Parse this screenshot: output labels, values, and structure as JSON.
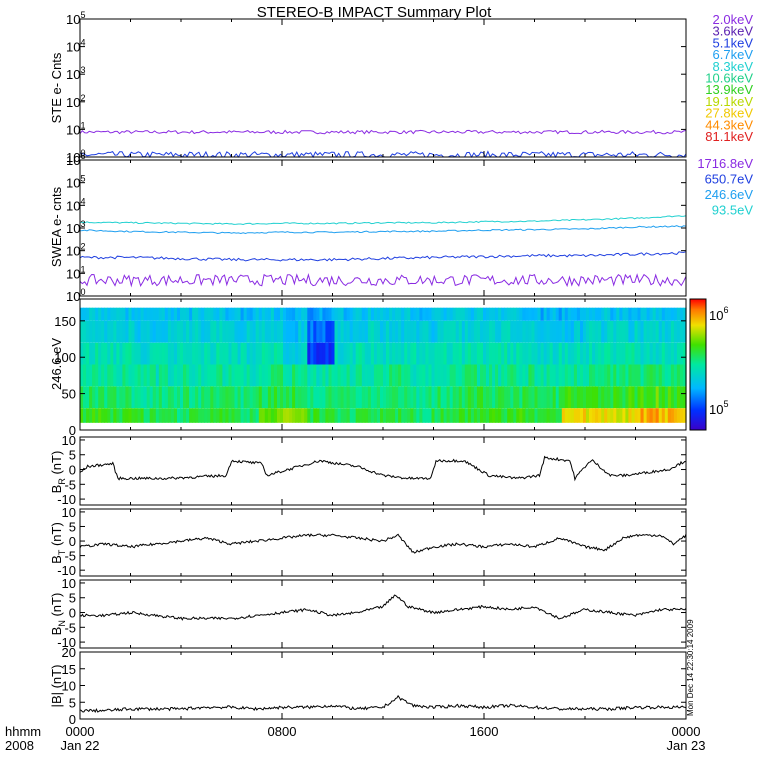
{
  "title": "STEREO-B IMPACT Summary Plot",
  "time_axis": {
    "corner_top": "hhmm",
    "corner_bottom": "2008",
    "ticks": [
      {
        "hour": 0,
        "top": "0000",
        "bottom": "Jan 22"
      },
      {
        "hour": 8,
        "top": "0800",
        "bottom": ""
      },
      {
        "hour": 16,
        "top": "1600",
        "bottom": ""
      },
      {
        "hour": 24,
        "top": "0000",
        "bottom": "Jan 23"
      }
    ],
    "range_hours": [
      0,
      24
    ]
  },
  "timestamp": "Mon Dec 14 22:30:14 2009",
  "colors": {
    "line": "#000000",
    "purple": "#7a1fd2",
    "blue": "#1a2fd6",
    "sky": "#2098f0",
    "teal": "#28d8d0"
  },
  "legend": {
    "ste": [
      {
        "label": "2.0keV",
        "color": "#8a2be2"
      },
      {
        "label": "3.6keV",
        "color": "#5a1fb0"
      },
      {
        "label": "5.1keV",
        "color": "#1f3fe0"
      },
      {
        "label": "6.7keV",
        "color": "#1f9ff0"
      },
      {
        "label": "8.3keV",
        "color": "#20d0d0"
      },
      {
        "label": "10.6keV",
        "color": "#20d08a"
      },
      {
        "label": "13.9keV",
        "color": "#30d020"
      },
      {
        "label": "19.1keV",
        "color": "#b8d800"
      },
      {
        "label": "27.8keV",
        "color": "#f0c800"
      },
      {
        "label": "44.3keV",
        "color": "#ff8c00"
      },
      {
        "label": "81.1keV",
        "color": "#e02020"
      }
    ],
    "swea": [
      {
        "label": "1716.8eV",
        "color": "#8a2be2"
      },
      {
        "label": "650.7eV",
        "color": "#1f3fe0"
      },
      {
        "label": "246.6eV",
        "color": "#1f9ff0"
      },
      {
        "label": "93.5eV",
        "color": "#20d0d0"
      }
    ]
  },
  "panels": {
    "ste": {
      "ylabel": "STE e- Cnts",
      "yscale": "log",
      "ylim_exp": [
        0,
        5
      ],
      "tick_exponents": [
        0,
        1,
        2,
        3,
        4,
        5
      ]
    },
    "swea": {
      "ylabel": "SWEA e- cnts",
      "yscale": "log",
      "ylim_exp": [
        0,
        6
      ],
      "tick_exponents": [
        0,
        1,
        2,
        3,
        4,
        5,
        6
      ]
    },
    "pad": {
      "ylabel": "246.6 eV",
      "ylim": [
        0,
        180
      ],
      "ticks": [
        0,
        50,
        100,
        150
      ],
      "colorbar": {
        "low_label": "10",
        "low_exp": "5",
        "high_label": "10",
        "high_exp": "6"
      }
    },
    "br": {
      "ylabel_main": "B",
      "ylabel_sub": "R",
      "ylabel_unit": " (nT)",
      "ylim": [
        -12,
        11
      ],
      "ticks": [
        -10,
        -5,
        0,
        5,
        10
      ]
    },
    "bt": {
      "ylabel_main": "B",
      "ylabel_sub": "T",
      "ylabel_unit": " (nT)",
      "ylim": [
        -12,
        11
      ],
      "ticks": [
        -10,
        -5,
        0,
        5,
        10
      ]
    },
    "bn": {
      "ylabel_main": "B",
      "ylabel_sub": "N",
      "ylabel_unit": " (nT)",
      "ylim": [
        -12,
        11
      ],
      "ticks": [
        -10,
        -5,
        0,
        5,
        10
      ]
    },
    "bmag": {
      "ylabel": "|B| (nT)",
      "ylim": [
        0,
        20
      ],
      "ticks": [
        0,
        5,
        10,
        15,
        20
      ]
    }
  },
  "chart_data": [
    {
      "type": "line",
      "title": "STEREO-B IMPACT Summary Plot",
      "ylabel": "STE e- Cnts",
      "yscale": "log",
      "ylim": [
        1,
        100000
      ],
      "x_hours": [
        0,
        2,
        4,
        6,
        8,
        10,
        12,
        14,
        16,
        18,
        20,
        22,
        24
      ],
      "series": [
        {
          "name": "2.0keV",
          "values": [
            8,
            8,
            8,
            8,
            8,
            8,
            8,
            8,
            8,
            8,
            8,
            8,
            8
          ]
        },
        {
          "name": "5.1keV",
          "values": [
            1.2,
            1.2,
            1.2,
            1.2,
            1.2,
            1.2,
            1.2,
            1.2,
            1.2,
            1.2,
            1.2,
            1.2,
            1.2
          ]
        }
      ]
    },
    {
      "type": "line",
      "ylabel": "SWEA e- cnts",
      "yscale": "log",
      "ylim": [
        1,
        1000000
      ],
      "x_hours": [
        0,
        2,
        4,
        6,
        8,
        10,
        12,
        14,
        16,
        18,
        20,
        22,
        24
      ],
      "series": [
        {
          "name": "93.5eV",
          "values": [
            1800,
            1700,
            1600,
            1500,
            1600,
            1600,
            1700,
            1700,
            1900,
            2000,
            2300,
            2700,
            3500
          ]
        },
        {
          "name": "246.6eV",
          "values": [
            800,
            700,
            650,
            600,
            650,
            650,
            700,
            720,
            800,
            850,
            900,
            1100,
            1200
          ]
        },
        {
          "name": "650.7eV",
          "values": [
            50,
            50,
            45,
            40,
            40,
            40,
            45,
            50,
            55,
            60,
            60,
            70,
            80
          ]
        },
        {
          "name": "1716.8eV",
          "values": [
            5,
            5,
            5,
            5,
            5,
            5,
            5,
            5,
            5,
            5,
            5,
            5,
            5
          ]
        }
      ]
    },
    {
      "type": "heatmap",
      "ylabel": "246.6 eV",
      "ylim": [
        0,
        180
      ],
      "x_range_hours": [
        0,
        24
      ],
      "color_range": [
        100000,
        1000000
      ],
      "y_bins": [
        15,
        45,
        75,
        105,
        135,
        165
      ],
      "x_bins_hours": [
        0,
        1,
        2,
        3,
        4,
        5,
        6,
        7,
        8,
        9,
        10,
        11,
        12,
        13,
        14,
        15,
        16,
        17,
        18,
        19,
        20,
        21,
        22,
        23
      ],
      "values_norm": [
        [
          0.62,
          0.6,
          0.58,
          0.55,
          0.58,
          0.6,
          0.56,
          0.66,
          0.7,
          0.6,
          0.56,
          0.58,
          0.6,
          0.56,
          0.58,
          0.62,
          0.6,
          0.62,
          0.6,
          0.84,
          0.8,
          0.78,
          0.86,
          0.84
        ],
        [
          0.55,
          0.54,
          0.52,
          0.52,
          0.54,
          0.56,
          0.52,
          0.58,
          0.6,
          0.54,
          0.52,
          0.54,
          0.56,
          0.52,
          0.54,
          0.58,
          0.56,
          0.58,
          0.56,
          0.64,
          0.62,
          0.62,
          0.66,
          0.64
        ],
        [
          0.5,
          0.5,
          0.48,
          0.48,
          0.5,
          0.5,
          0.48,
          0.52,
          0.52,
          0.48,
          0.48,
          0.5,
          0.52,
          0.48,
          0.5,
          0.52,
          0.5,
          0.52,
          0.5,
          0.52,
          0.52,
          0.52,
          0.54,
          0.52
        ],
        [
          0.46,
          0.46,
          0.44,
          0.44,
          0.46,
          0.46,
          0.44,
          0.46,
          0.4,
          0.15,
          0.44,
          0.46,
          0.46,
          0.44,
          0.46,
          0.46,
          0.46,
          0.46,
          0.44,
          0.44,
          0.46,
          0.46,
          0.46,
          0.46
        ],
        [
          0.4,
          0.4,
          0.38,
          0.4,
          0.4,
          0.4,
          0.38,
          0.4,
          0.36,
          0.22,
          0.38,
          0.4,
          0.4,
          0.38,
          0.4,
          0.4,
          0.4,
          0.4,
          0.36,
          0.36,
          0.4,
          0.4,
          0.4,
          0.4
        ],
        [
          0.36,
          0.36,
          0.34,
          0.36,
          0.36,
          0.36,
          0.34,
          0.36,
          0.34,
          0.3,
          0.34,
          0.36,
          0.36,
          0.34,
          0.36,
          0.36,
          0.36,
          0.36,
          0.32,
          0.32,
          0.36,
          0.36,
          0.36,
          0.36
        ]
      ]
    },
    {
      "type": "line",
      "ylabel": "BR (nT)",
      "ylim": [
        -12,
        11
      ],
      "x_hours": [
        0,
        0.3,
        1.3,
        1.5,
        2.5,
        3.5,
        5.8,
        6.0,
        7.2,
        7.4,
        9.5,
        10.2,
        11.0,
        12.0,
        13.0,
        13.9,
        14.1,
        15.2,
        16.2,
        17.3,
        18.2,
        18.4,
        19.4,
        19.6,
        20.1,
        20.3,
        21.0,
        21.6,
        23.3,
        24.0
      ],
      "values": [
        -1,
        1,
        2,
        -3,
        -3,
        -3,
        -2,
        3,
        2,
        -2,
        3,
        2,
        1,
        -2,
        -3,
        -3,
        3,
        3,
        -2,
        -3,
        -2,
        4,
        3,
        -3,
        2,
        3,
        -2,
        -2,
        0,
        3
      ]
    },
    {
      "type": "line",
      "ylabel": "BT (nT)",
      "ylim": [
        -12,
        11
      ],
      "x_hours": [
        0,
        1,
        2,
        3,
        4,
        5,
        6,
        7,
        8,
        9,
        10,
        11,
        12.0,
        12.6,
        13.2,
        14,
        15,
        16,
        17,
        18,
        19,
        20,
        20.8,
        21.5,
        22,
        23,
        23.5,
        24
      ],
      "values": [
        -2,
        -1,
        -2,
        -1,
        0,
        1,
        -1,
        0,
        1,
        2,
        2,
        1,
        0,
        2,
        -4,
        -2,
        -1,
        -2,
        -1,
        -2,
        1,
        -2,
        -3,
        1,
        2,
        2,
        -1,
        2
      ]
    },
    {
      "type": "line",
      "ylabel": "BN (nT)",
      "ylim": [
        -12,
        11
      ],
      "x_hours": [
        0,
        1,
        2,
        3,
        4,
        5,
        6,
        7,
        8,
        9,
        10,
        11,
        12,
        12.5,
        13.0,
        14,
        15,
        16,
        17,
        18,
        19,
        20,
        21,
        22,
        23,
        24
      ],
      "values": [
        -1,
        -1,
        0,
        -1,
        -2,
        -2,
        -2,
        -1,
        0,
        1,
        -1,
        0,
        2,
        6,
        2,
        0,
        1,
        2,
        1,
        2,
        -2,
        1,
        0,
        -1,
        1,
        1
      ]
    },
    {
      "type": "line",
      "ylabel": "|B| (nT)",
      "ylim": [
        0,
        20
      ],
      "x_hours": [
        0,
        1,
        2,
        3,
        4,
        5,
        6,
        7,
        8,
        9,
        10,
        11,
        12,
        12.6,
        13.2,
        14,
        15,
        16,
        17,
        18,
        19,
        20,
        21,
        22,
        23,
        24
      ],
      "values": [
        2.5,
        2.5,
        3.0,
        3.0,
        3.0,
        3.5,
        3.5,
        3.0,
        3.5,
        3.5,
        4.0,
        3.0,
        3.5,
        6.5,
        4.0,
        3.5,
        4.0,
        3.5,
        4.0,
        3.5,
        3.0,
        3.0,
        3.0,
        3.5,
        3.5,
        3.5
      ]
    }
  ]
}
